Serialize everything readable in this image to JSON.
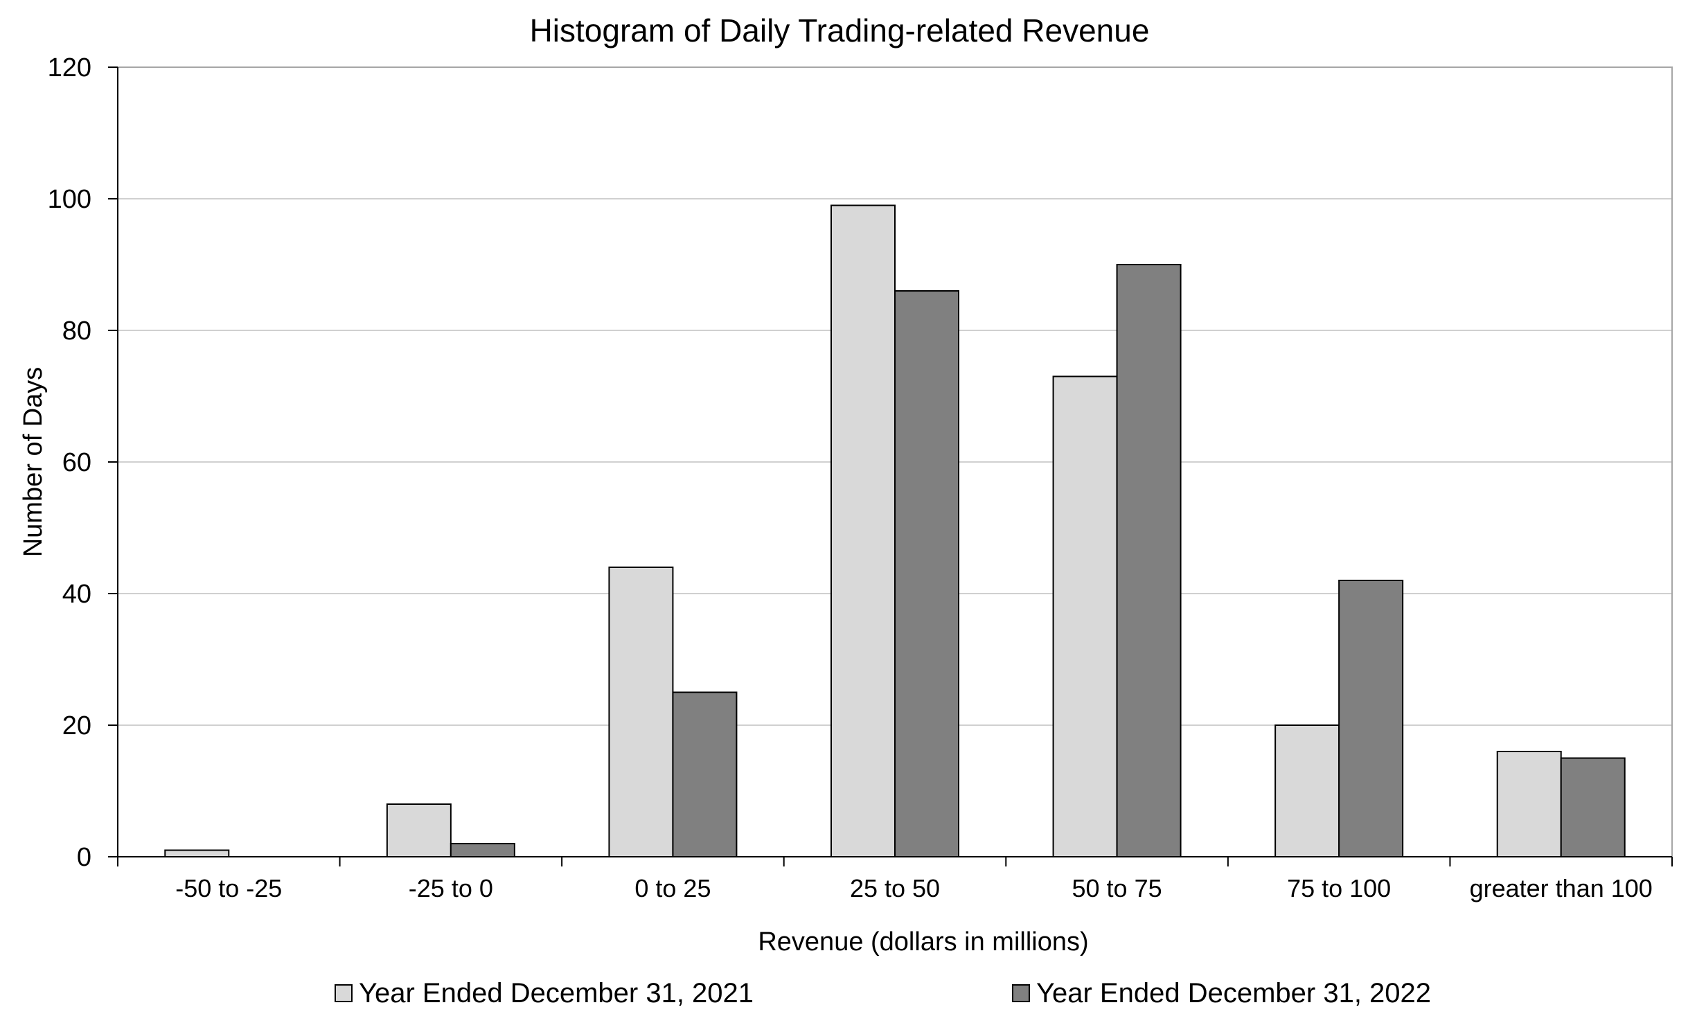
{
  "chart_data": {
    "type": "bar",
    "title": "Histogram of Daily Trading-related Revenue",
    "xlabel": "Revenue (dollars in millions)",
    "ylabel": "Number of Days",
    "ylim": [
      0,
      120
    ],
    "yticks": [
      "0",
      "20",
      "40",
      "60",
      "80",
      "100",
      "120"
    ],
    "grid": true,
    "legend_position": "bottom",
    "categories": [
      "-50 to -25",
      "-25 to 0",
      "0 to 25",
      "25 to 50",
      "50 to 75",
      "75 to 100",
      "greater than 100"
    ],
    "series": [
      {
        "name": "Year Ended December 31, 2021",
        "color": "#d9d9d9",
        "values": [
          1,
          8,
          44,
          99,
          73,
          20,
          16
        ]
      },
      {
        "name": "Year Ended December 31, 2022",
        "color": "#808080",
        "values": [
          0,
          2,
          25,
          86,
          90,
          42,
          15
        ]
      }
    ]
  }
}
